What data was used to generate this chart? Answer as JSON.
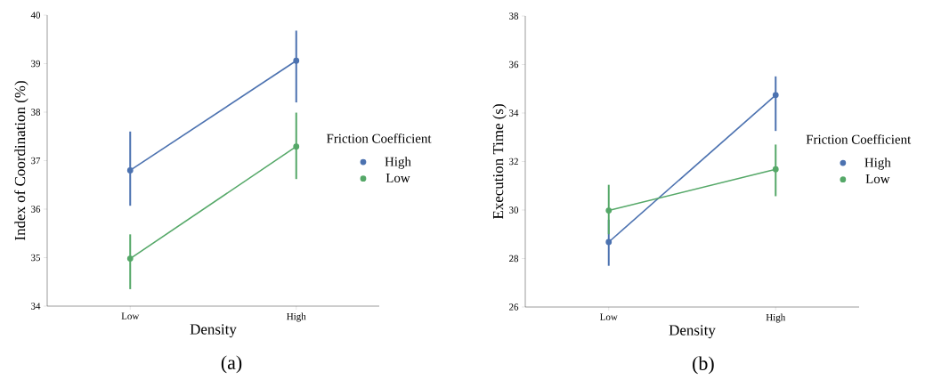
{
  "chart_data": [
    {
      "type": "line",
      "xlabel": "Density",
      "ylabel": "Index of Coordination (%)",
      "categories": [
        "Low",
        "High"
      ],
      "ylim": [
        34,
        40
      ],
      "yticks": [
        34,
        35,
        36,
        37,
        38,
        39,
        40
      ],
      "legend": "right",
      "legend_title": "Friction Coefficient",
      "marker": "circle",
      "annotations": [
        "(a)"
      ],
      "series": [
        {
          "name": "High",
          "color": "#4c72b0",
          "values": [
            36.8,
            39.06
          ],
          "errors": [
            [
              36.07,
              37.6
            ],
            [
              38.2,
              39.68
            ]
          ]
        },
        {
          "name": "Low",
          "color": "#55a868",
          "values": [
            34.98,
            37.29
          ],
          "errors": [
            [
              34.35,
              35.48
            ],
            [
              36.62,
              37.99
            ]
          ]
        }
      ]
    },
    {
      "type": "line",
      "xlabel": "Density",
      "ylabel": "Execution Time (s)",
      "categories": [
        "Low",
        "High"
      ],
      "ylim": [
        26,
        38
      ],
      "yticks": [
        26,
        28,
        30,
        32,
        34,
        36,
        38
      ],
      "legend": "right",
      "legend_title": "Friction Coefficient",
      "marker": "circle",
      "annotations": [
        "(b)"
      ],
      "series": [
        {
          "name": "High",
          "color": "#4c72b0",
          "values": [
            28.68,
            34.74
          ],
          "errors": [
            [
              27.7,
              29.6
            ],
            [
              33.26,
              35.51
            ]
          ]
        },
        {
          "name": "Low",
          "color": "#55a868",
          "values": [
            29.98,
            31.68
          ],
          "errors": [
            [
              29.0,
              31.04
            ],
            [
              30.57,
              32.7
            ]
          ]
        }
      ]
    }
  ]
}
